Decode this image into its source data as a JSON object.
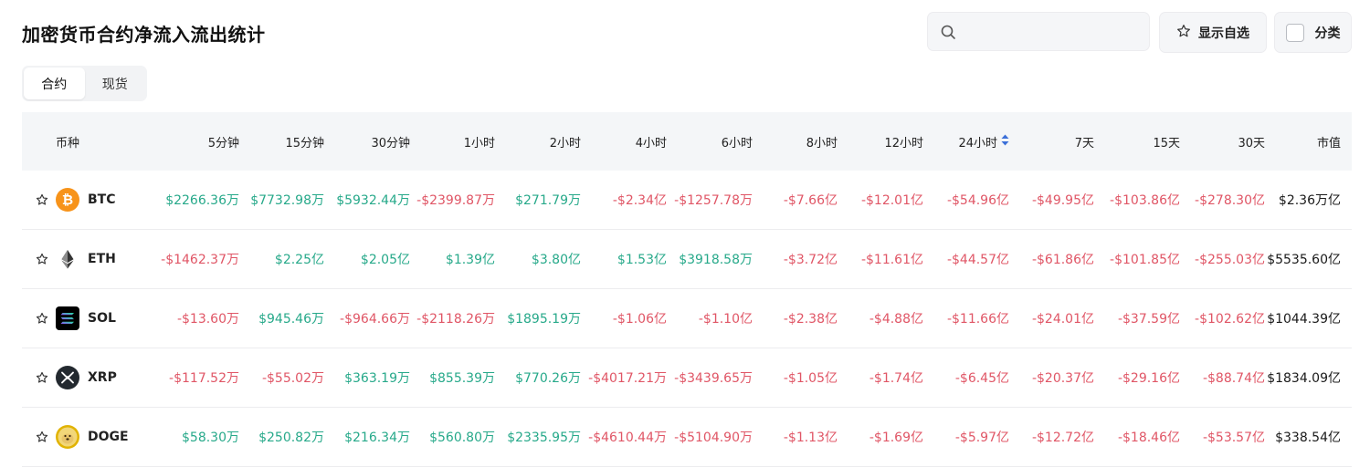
{
  "title": "加密货币合约净流入流出统计",
  "search": {
    "placeholder": "",
    "value": ""
  },
  "favorites_label": "显示自选",
  "category_label": "分类",
  "tabs": [
    {
      "label": "合约",
      "active": true
    },
    {
      "label": "现货",
      "active": false
    }
  ],
  "colors": {
    "positive": "#27a98a",
    "negative": "#e05666",
    "sort_active": "#3b6fd8"
  },
  "columns": [
    "币种",
    "5分钟",
    "15分钟",
    "30分钟",
    "1小时",
    "2小时",
    "4小时",
    "6小时",
    "8小时",
    "12小时",
    "24小时",
    "7天",
    "15天",
    "30天",
    "市值"
  ],
  "sorted_column": "24小时",
  "rows": [
    {
      "symbol": "BTC",
      "logo": "bitcoin-logo-icon",
      "values": [
        "$2266.36万",
        "$7732.98万",
        "$5932.44万",
        "-$2399.87万",
        "$271.79万",
        "-$2.34亿",
        "-$1257.78万",
        "-$7.66亿",
        "-$12.01亿",
        "-$54.96亿",
        "-$49.95亿",
        "-$103.86亿",
        "-$278.30亿"
      ],
      "market_cap": "$2.36万亿"
    },
    {
      "symbol": "ETH",
      "logo": "ethereum-logo-icon",
      "values": [
        "-$1462.37万",
        "$2.25亿",
        "$2.05亿",
        "$1.39亿",
        "$3.80亿",
        "$1.53亿",
        "$3918.58万",
        "-$3.72亿",
        "-$11.61亿",
        "-$44.57亿",
        "-$61.86亿",
        "-$101.85亿",
        "-$255.03亿"
      ],
      "market_cap": "$5535.60亿"
    },
    {
      "symbol": "SOL",
      "logo": "solana-logo-icon",
      "values": [
        "-$13.60万",
        "$945.46万",
        "-$964.66万",
        "-$2118.26万",
        "$1895.19万",
        "-$1.06亿",
        "-$1.10亿",
        "-$2.38亿",
        "-$4.88亿",
        "-$11.66亿",
        "-$24.01亿",
        "-$37.59亿",
        "-$102.62亿"
      ],
      "market_cap": "$1044.39亿"
    },
    {
      "symbol": "XRP",
      "logo": "xrp-logo-icon",
      "values": [
        "-$117.52万",
        "-$55.02万",
        "$363.19万",
        "$855.39万",
        "$770.26万",
        "-$4017.21万",
        "-$3439.65万",
        "-$1.05亿",
        "-$1.74亿",
        "-$6.45亿",
        "-$20.37亿",
        "-$29.16亿",
        "-$88.74亿"
      ],
      "market_cap": "$1834.09亿"
    },
    {
      "symbol": "DOGE",
      "logo": "dogecoin-logo-icon",
      "values": [
        "$58.30万",
        "$250.82万",
        "$216.34万",
        "$560.80万",
        "$2335.95万",
        "-$4610.44万",
        "-$5104.90万",
        "-$1.13亿",
        "-$1.69亿",
        "-$5.97亿",
        "-$12.72亿",
        "-$18.46亿",
        "-$53.57亿"
      ],
      "market_cap": "$338.54亿"
    }
  ]
}
